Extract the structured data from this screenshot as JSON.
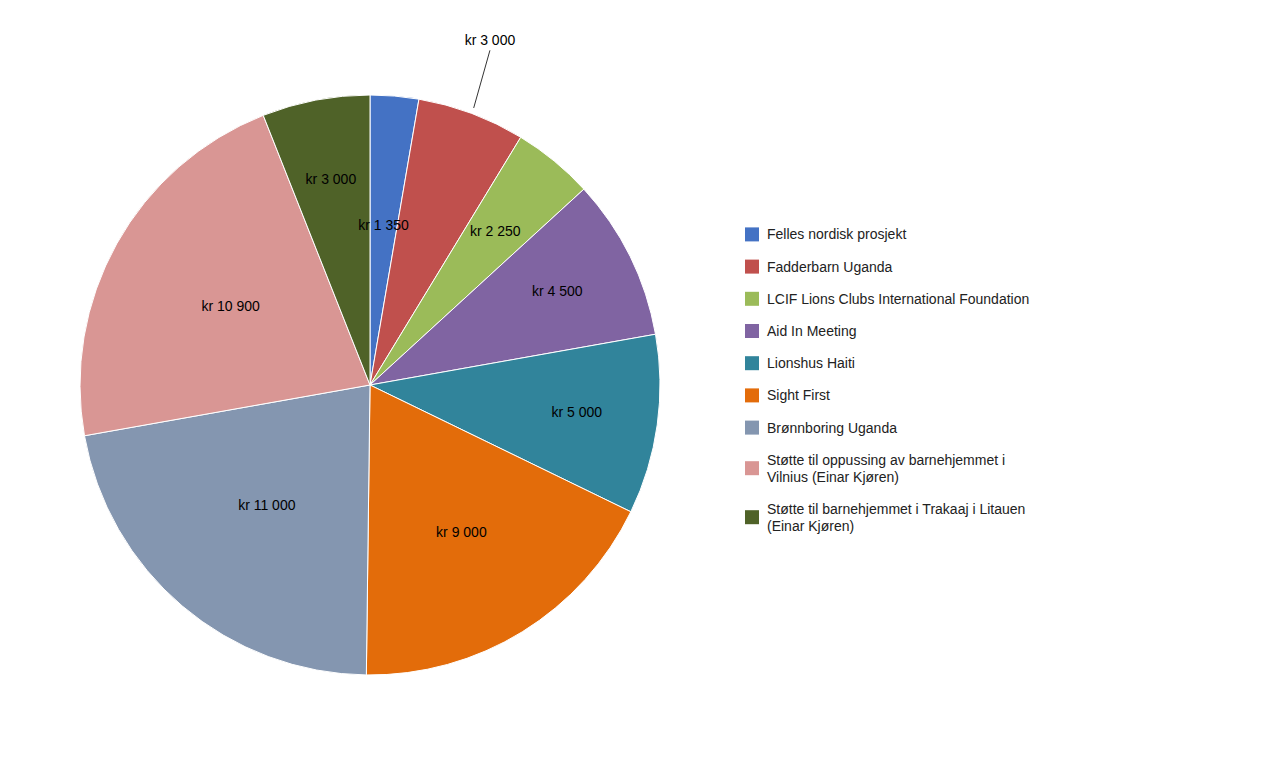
{
  "chart_data": {
    "type": "pie",
    "categories": [
      "Felles nordisk prosjekt",
      "Fadderbarn Uganda",
      "LCIF Lions Clubs International Foundation",
      "Aid In Meeting",
      "Lionshus Haiti",
      "Sight First",
      "Brønnboring Uganda",
      "Støtte til oppussing av barnehjemmet i\nVilnius (Einar Kjøren)",
      "Støtte til barnehjemmet i Trakaaj  i Litauen\n(Einar Kjøren)"
    ],
    "values": [
      1350,
      3000,
      2250,
      4500,
      5000,
      9000,
      11000,
      10900,
      3000
    ],
    "value_labels": [
      "kr 1 350",
      "kr 3 000",
      "kr 2 250",
      "kr 4 500",
      "kr 5 000",
      "kr 9 000",
      "kr 11 000",
      "kr 10 900",
      "kr 3 000"
    ],
    "colors": [
      "#4472C4",
      "#C0504D",
      "#9BBB59",
      "#8064A2",
      "#31849B",
      "#E36C0A",
      "#8496B0",
      "#D99694",
      "#4F6228"
    ],
    "data_labels": true,
    "legend": "right"
  }
}
